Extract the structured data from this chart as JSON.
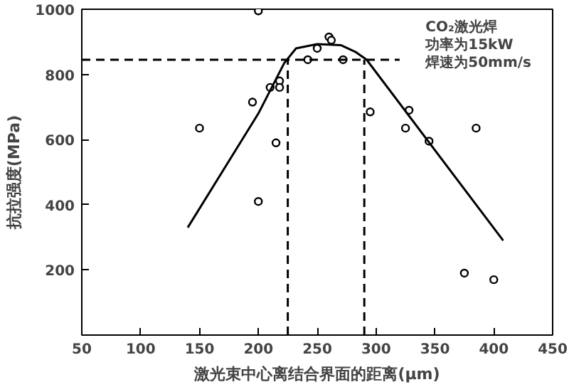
{
  "chart_data": {
    "type": "scatter",
    "xlabel": "激光束中心离结合界面的距离(μm)",
    "ylabel": "抗拉强度(MPa)",
    "annotations": [
      "CO₂激光焊",
      "功率为15kW",
      "焊速为50mm/s"
    ],
    "xlim": [
      50,
      450
    ],
    "xticks": [
      50,
      100,
      150,
      200,
      250,
      300,
      350,
      400,
      450
    ],
    "ylim": [
      0,
      1000
    ],
    "yticks": [
      200,
      400,
      600,
      800,
      1000
    ],
    "grid": false,
    "series": [
      {
        "color": "#000000",
        "marker": "circle",
        "x": [
          150,
          195,
          200,
          200,
          210,
          215,
          218,
          218,
          242,
          250,
          260,
          262,
          272,
          295,
          325,
          328,
          345,
          375,
          385,
          400
        ],
        "values": [
          635,
          715,
          995,
          410,
          760,
          590,
          780,
          760,
          845,
          880,
          915,
          905,
          845,
          685,
          635,
          690,
          595,
          190,
          635,
          170
        ]
      },
      {
        "type": "line",
        "color": "#000000",
        "line_style": "solid",
        "x": [
          140,
          200,
          222,
          232,
          250,
          270,
          283,
          292,
          408
        ],
        "values": [
          330,
          680,
          835,
          880,
          893,
          890,
          868,
          845,
          290
        ]
      },
      {
        "type": "line",
        "color": "#000000",
        "line_style": "dashed",
        "x": [
          50,
          320
        ],
        "values": [
          845,
          845
        ]
      },
      {
        "type": "line",
        "color": "#000000",
        "line_style": "dashed",
        "x": [
          225,
          225
        ],
        "values": [
          0,
          845
        ]
      },
      {
        "type": "line",
        "color": "#000000",
        "line_style": "dashed",
        "x": [
          290,
          290
        ],
        "values": [
          0,
          845
        ]
      }
    ]
  }
}
